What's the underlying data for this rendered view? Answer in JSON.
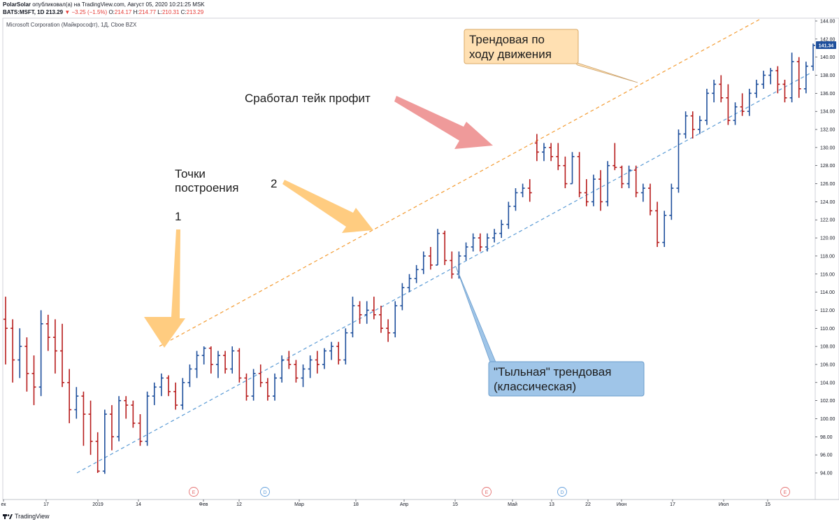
{
  "header": {
    "author": "PolarSolar",
    "published": "опубликовал(а) на TradingView.com, Август 05, 2020 10:21:25 MSK",
    "symbol": "BATS:MSFT, 1D",
    "last": "213.29",
    "change": "−3.25 (−1.5%)",
    "o_label": "O:",
    "o": "214.17",
    "h_label": "H:",
    "h": "214.77",
    "l_label": "L:",
    "l": "210.31",
    "c_label": "C:",
    "c": "213.29"
  },
  "legend": "Microsoft Corporation (Майкрософт), 1Д, Cboe BZX",
  "footer": {
    "brand": "TradingView"
  },
  "colors": {
    "up": "#1e4f9c",
    "down": "#b71c1c",
    "orange_line": "#f39c34",
    "blue_line": "#5b9bd5",
    "arrow_yellow": "#ffcc80",
    "arrow_pink": "#ef9a9a",
    "callout_orange_bg": "#ffe0b2",
    "callout_blue_bg": "#9fc5e8",
    "price_tag": "#1e4f9c"
  },
  "annotations": {
    "label_1": "1",
    "label_2": "2",
    "points": [
      "Точки",
      "построения"
    ],
    "take_profit": "Сработал тейк профит",
    "trend_forward": [
      "Трендовая по",
      "ходу движения"
    ],
    "trend_back": [
      "\"Тыльная\" трендовая",
      "(классическая)"
    ]
  },
  "chart_data": {
    "type": "ohlc",
    "ylim": [
      93,
      145
    ],
    "y_ticks": [
      "144.00",
      "142.00",
      "140.00",
      "138.00",
      "136.00",
      "134.00",
      "132.00",
      "130.00",
      "128.00",
      "126.00",
      "124.00",
      "122.00",
      "120.00",
      "118.00",
      "116.00",
      "114.00",
      "112.00",
      "110.00",
      "108.00",
      "106.00",
      "104.00",
      "102.00",
      "100.00",
      "98.00",
      "96.00",
      "94.00"
    ],
    "current_price": "141.34",
    "x_ticks": [
      "ек",
      "17",
      "2019",
      "14",
      "Фев",
      "12",
      "Мар",
      "18",
      "Апр",
      "15",
      "Май",
      "13",
      "22",
      "Июн",
      "17",
      "Июл",
      "15"
    ],
    "events": [
      "E",
      "D",
      "E",
      "D",
      "E"
    ],
    "series_ohlc": [
      [
        111.0,
        113.5,
        106.0,
        110.0
      ],
      [
        110.0,
        111.0,
        104.0,
        106.5
      ],
      [
        106.5,
        110.0,
        104.5,
        108.0
      ],
      [
        108.0,
        109.0,
        103.0,
        105.0
      ],
      [
        105.0,
        107.0,
        101.5,
        103.5
      ],
      [
        103.5,
        112.0,
        102.5,
        110.5
      ],
      [
        110.5,
        111.5,
        107.5,
        109.0
      ],
      [
        109.0,
        111.0,
        105.0,
        107.5
      ],
      [
        107.5,
        110.5,
        103.5,
        104.0
      ],
      [
        104.0,
        105.5,
        99.5,
        101.0
      ],
      [
        101.0,
        103.5,
        100.0,
        102.5
      ],
      [
        102.5,
        103.0,
        97.0,
        100.5
      ],
      [
        100.5,
        102.0,
        96.0,
        97.5
      ],
      [
        97.5,
        98.5,
        94.0,
        94.2
      ],
      [
        94.2,
        101.0,
        93.9,
        100.5
      ],
      [
        100.5,
        101.5,
        96.5,
        98.0
      ],
      [
        98.0,
        102.5,
        97.5,
        102.0
      ],
      [
        102.0,
        102.5,
        100.0,
        101.5
      ],
      [
        101.5,
        102.0,
        99.0,
        99.5
      ],
      [
        99.5,
        100.5,
        97.0,
        97.5
      ],
      [
        97.5,
        103.0,
        97.0,
        102.5
      ],
      [
        102.5,
        104.0,
        101.5,
        103.5
      ],
      [
        103.5,
        105.0,
        102.5,
        104.5
      ],
      [
        104.5,
        104.8,
        102.5,
        103.0
      ],
      [
        103.0,
        104.0,
        101.0,
        101.5
      ],
      [
        101.5,
        104.5,
        101.0,
        104.0
      ],
      [
        104.0,
        106.0,
        103.5,
        105.5
      ],
      [
        105.5,
        107.5,
        104.5,
        107.0
      ],
      [
        107.0,
        108.0,
        106.0,
        107.8
      ],
      [
        107.8,
        108.0,
        105.0,
        106.0
      ],
      [
        106.0,
        107.5,
        104.5,
        107.0
      ],
      [
        107.0,
        107.5,
        105.0,
        105.5
      ],
      [
        105.5,
        108.0,
        105.0,
        107.5
      ],
      [
        107.5,
        107.8,
        104.0,
        104.5
      ],
      [
        104.5,
        105.0,
        102.0,
        102.5
      ],
      [
        102.5,
        105.5,
        102.0,
        105.0
      ],
      [
        105.0,
        106.0,
        103.5,
        104.0
      ],
      [
        104.0,
        104.5,
        102.0,
        102.5
      ],
      [
        102.5,
        105.0,
        102.0,
        104.5
      ],
      [
        104.5,
        107.0,
        104.0,
        106.5
      ],
      [
        106.5,
        107.5,
        105.5,
        106.0
      ],
      [
        106.0,
        106.5,
        104.0,
        104.5
      ],
      [
        104.5,
        106.0,
        103.5,
        105.5
      ],
      [
        105.5,
        107.0,
        104.5,
        106.5
      ],
      [
        106.5,
        107.5,
        105.0,
        106.0
      ],
      [
        106.0,
        107.8,
        105.5,
        107.5
      ],
      [
        107.5,
        108.5,
        106.5,
        108.0
      ],
      [
        108.0,
        108.5,
        106.0,
        106.5
      ],
      [
        106.5,
        110.0,
        106.0,
        109.5
      ],
      [
        109.5,
        113.5,
        109.0,
        112.5
      ],
      [
        112.5,
        113.0,
        110.5,
        111.5
      ],
      [
        111.5,
        113.0,
        110.5,
        112.0
      ],
      [
        112.0,
        113.5,
        111.0,
        111.5
      ],
      [
        111.5,
        112.5,
        109.5,
        110.0
      ],
      [
        110.0,
        111.0,
        108.5,
        109.5
      ],
      [
        109.5,
        113.0,
        109.0,
        112.5
      ],
      [
        112.5,
        115.0,
        112.0,
        114.5
      ],
      [
        114.5,
        116.0,
        114.0,
        115.5
      ],
      [
        115.5,
        117.0,
        115.0,
        116.5
      ],
      [
        116.5,
        118.5,
        116.0,
        118.0
      ],
      [
        118.0,
        119.0,
        116.5,
        117.0
      ],
      [
        117.0,
        121.0,
        117.0,
        120.5
      ],
      [
        120.5,
        120.8,
        117.0,
        117.5
      ],
      [
        117.5,
        118.5,
        115.5,
        116.0
      ],
      [
        116.0,
        118.5,
        115.5,
        118.0
      ],
      [
        118.0,
        119.5,
        117.5,
        119.0
      ],
      [
        119.0,
        120.5,
        118.5,
        120.0
      ],
      [
        120.0,
        120.5,
        118.5,
        119.0
      ],
      [
        119.0,
        120.5,
        118.5,
        120.0
      ],
      [
        120.0,
        121.0,
        119.5,
        120.5
      ],
      [
        120.5,
        122.0,
        120.0,
        121.5
      ],
      [
        121.5,
        124.0,
        121.0,
        123.5
      ],
      [
        123.5,
        125.5,
        123.0,
        125.0
      ],
      [
        125.0,
        126.0,
        124.5,
        125.5
      ],
      [
        125.5,
        126.5,
        124.0,
        125.0
      ],
      [
        130.5,
        131.5,
        128.5,
        129.5
      ],
      [
        129.5,
        130.5,
        128.5,
        130.0
      ],
      [
        130.0,
        130.5,
        128.5,
        129.0
      ],
      [
        129.0,
        130.5,
        127.5,
        128.0
      ],
      [
        128.0,
        129.0,
        125.5,
        126.0
      ],
      [
        126.0,
        129.5,
        126.0,
        129.0
      ],
      [
        129.0,
        129.5,
        124.5,
        125.0
      ],
      [
        125.0,
        126.5,
        123.5,
        124.0
      ],
      [
        124.0,
        127.0,
        123.5,
        126.5
      ],
      [
        126.5,
        127.5,
        123.0,
        124.0
      ],
      [
        124.0,
        128.5,
        123.5,
        128.0
      ],
      [
        128.0,
        130.5,
        127.5,
        127.8
      ],
      [
        127.8,
        128.0,
        125.5,
        126.0
      ],
      [
        126.0,
        128.0,
        125.5,
        127.5
      ],
      [
        127.5,
        128.0,
        124.5,
        125.0
      ],
      [
        125.0,
        126.0,
        124.0,
        125.5
      ],
      [
        125.5,
        126.0,
        122.5,
        123.0
      ],
      [
        123.0,
        124.0,
        119.0,
        119.5
      ],
      [
        119.5,
        123.0,
        119.0,
        122.5
      ],
      [
        122.5,
        126.0,
        122.0,
        125.5
      ],
      [
        125.5,
        132.0,
        125.0,
        131.5
      ],
      [
        131.5,
        134.0,
        131.0,
        133.5
      ],
      [
        133.5,
        134.0,
        131.0,
        132.0
      ],
      [
        132.0,
        133.5,
        131.5,
        133.0
      ],
      [
        133.0,
        136.5,
        132.5,
        136.0
      ],
      [
        136.0,
        137.5,
        135.0,
        137.0
      ],
      [
        137.0,
        138.0,
        135.0,
        135.5
      ],
      [
        135.5,
        137.0,
        132.5,
        133.0
      ],
      [
        133.0,
        135.0,
        132.5,
        134.5
      ],
      [
        134.5,
        136.0,
        133.5,
        134.0
      ],
      [
        134.0,
        136.5,
        133.5,
        136.0
      ],
      [
        136.0,
        137.5,
        135.5,
        137.0
      ],
      [
        137.0,
        138.5,
        136.5,
        138.0
      ],
      [
        138.0,
        138.8,
        137.0,
        138.5
      ],
      [
        138.5,
        139.0,
        136.0,
        137.0
      ],
      [
        137.0,
        137.5,
        135.0,
        135.5
      ],
      [
        135.5,
        140.5,
        135.0,
        139.5
      ],
      [
        139.5,
        140.0,
        135.5,
        136.5
      ],
      [
        136.5,
        139.5,
        136.0,
        139.0
      ],
      [
        139.0,
        141.5,
        138.5,
        141.3
      ]
    ]
  }
}
